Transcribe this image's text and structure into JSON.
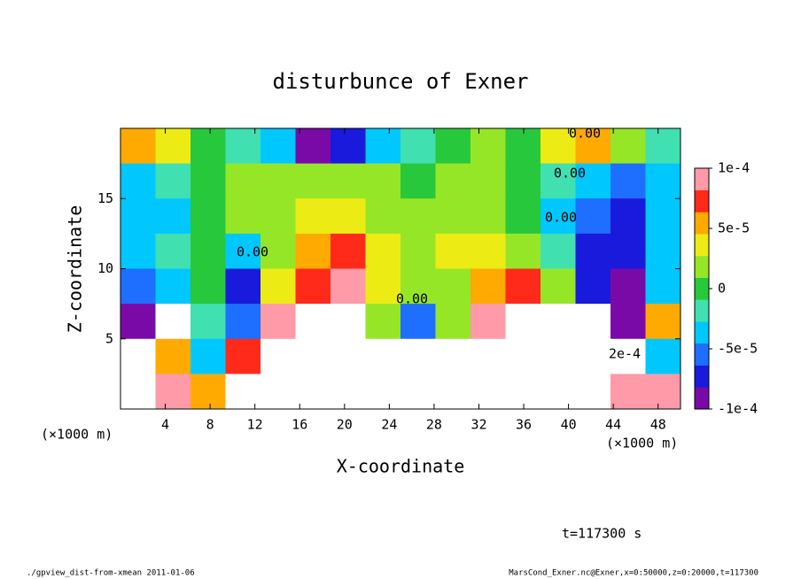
{
  "chart_data": {
    "type": "contour",
    "title": "disturbunce of Exner",
    "x_label": "X-coordinate",
    "y_label": "Z-coordinate",
    "x_unit": "(×1000 m)",
    "y_unit": "(×1000 m)",
    "xlim": [
      0,
      50
    ],
    "ylim": [
      0,
      20
    ],
    "xticks": [
      4,
      8,
      12,
      16,
      20,
      24,
      28,
      32,
      36,
      40,
      44,
      48
    ],
    "yticks": [
      5,
      10,
      15
    ],
    "z": [
      [
        6e-05,
        4e-05,
        0,
        -2e-05,
        -4e-05,
        -9e-05,
        -8e-05,
        -3e-05,
        -1e-05,
        0,
        1e-05,
        0,
        3e-05,
        5e-05,
        2e-05,
        -1e-05
      ],
      [
        -3e-05,
        -2e-05,
        0,
        1e-05,
        1e-05,
        2e-05,
        2e-05,
        1e-05,
        0,
        1e-05,
        1e-05,
        0,
        -2e-05,
        -4e-05,
        -6e-05,
        -4e-05
      ],
      [
        -4e-05,
        -3e-05,
        0,
        1e-05,
        2e-05,
        4e-05,
        4e-05,
        2e-05,
        1e-05,
        2e-05,
        2e-05,
        0,
        -3e-05,
        -6e-05,
        -7e-05,
        -4e-05
      ],
      [
        -3e-05,
        -2e-05,
        0,
        -4e-05,
        2e-05,
        6e-05,
        7e-05,
        4e-05,
        2e-05,
        3e-05,
        3e-05,
        2e-05,
        -2e-05,
        -7e-05,
        -8e-05,
        -3e-05
      ],
      [
        -5e-05,
        -3e-05,
        0,
        -7e-05,
        4e-05,
        8e-05,
        9e-05,
        3e-05,
        1e-05,
        2e-05,
        6e-05,
        7e-05,
        2e-05,
        -8e-05,
        -9e-05,
        -4e-05
      ],
      [
        -9e-05,
        0.00011,
        -2e-05,
        -5e-05,
        9e-05,
        0.00012,
        0.00011,
        2e-05,
        -5e-05,
        1e-05,
        9e-05,
        0.00011,
        0.00012,
        0.00011,
        -9e-05,
        6e-05
      ],
      [
        0.00011,
        5e-05,
        -4e-05,
        8e-05,
        0.00012,
        0.00011,
        0.00012,
        0.00012,
        0.00013,
        0.00011,
        0.00012,
        0.00012,
        0.00012,
        0.00012,
        0.00011,
        -4e-05
      ],
      [
        0.00011,
        9e-05,
        6e-05,
        0.00011,
        0.00012,
        0.00012,
        0.00012,
        0.00011,
        0.00012,
        0.00013,
        0.00012,
        0.00012,
        0.00012,
        0.00011,
        0.0001,
        9e-05
      ]
    ],
    "colorbar": {
      "lim": [
        -0.0001,
        0.0001
      ],
      "ticks": [
        {
          "value": 0.0001,
          "label": "1e-4"
        },
        {
          "value": 5e-05,
          "label": "5e-5"
        },
        0,
        {
          "value": -5e-05,
          "label": "-5e-5"
        },
        {
          "value": -0.0001,
          "label": "-1e-4"
        }
      ],
      "colors": [
        "#7a0aa8",
        "#1a1adc",
        "#1e6eff",
        "#00c8ff",
        "#40e0b0",
        "#28c83c",
        "#96e628",
        "#ecec14",
        "#ffaa00",
        "#ff2a1a",
        "#ff9aa8"
      ],
      "over_color": "#ffffff"
    },
    "contour_labels": [
      "0.00",
      "0.00",
      "0.00",
      "0.00",
      "0.00",
      "2e-4"
    ],
    "time_label": "t=117300 s",
    "footer_left": "./gpview_dist-from-xmean  2011-01-06",
    "footer_right": "MarsCond_Exner.nc@Exner,x=0:50000,z=0:20000,t=117300"
  }
}
